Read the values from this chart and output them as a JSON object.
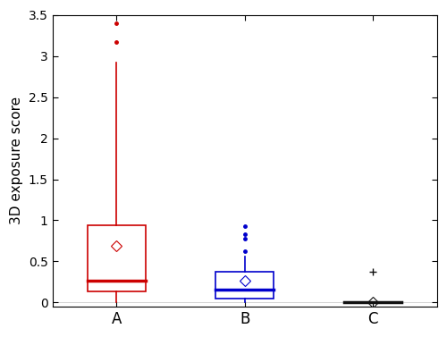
{
  "groups": [
    "A",
    "B",
    "C"
  ],
  "colors": [
    "#cc0000",
    "#0000cc",
    "#111111"
  ],
  "A": {
    "q1": 0.13,
    "median": 0.27,
    "q3": 0.935,
    "whisker_low": 0.0,
    "whisker_high": 2.92,
    "mean": 0.695,
    "outliers_dot": [
      3.17,
      3.4
    ],
    "outliers_plus": []
  },
  "B": {
    "q1": 0.05,
    "median": 0.155,
    "q3": 0.375,
    "whisker_low": 0.0,
    "whisker_high": 0.555,
    "mean": 0.27,
    "outliers_dot": [
      0.62,
      0.78,
      0.83,
      0.925
    ],
    "outliers_plus": []
  },
  "C": {
    "q1": 0.0,
    "median": 0.0,
    "q3": 0.008,
    "whisker_low": 0.0,
    "whisker_high": 0.01,
    "mean": 0.003,
    "outliers_dot": [],
    "outliers_plus": [
      0.375
    ]
  },
  "ylabel": "3D exposure score",
  "ylim": [
    -0.05,
    3.5
  ],
  "yticks": [
    0,
    0.5,
    1.0,
    1.5,
    2.0,
    2.5,
    3.0,
    3.5
  ],
  "box_width": 0.45,
  "linewidth": 1.2,
  "median_linewidth": 2.5,
  "background_color": "#ffffff"
}
